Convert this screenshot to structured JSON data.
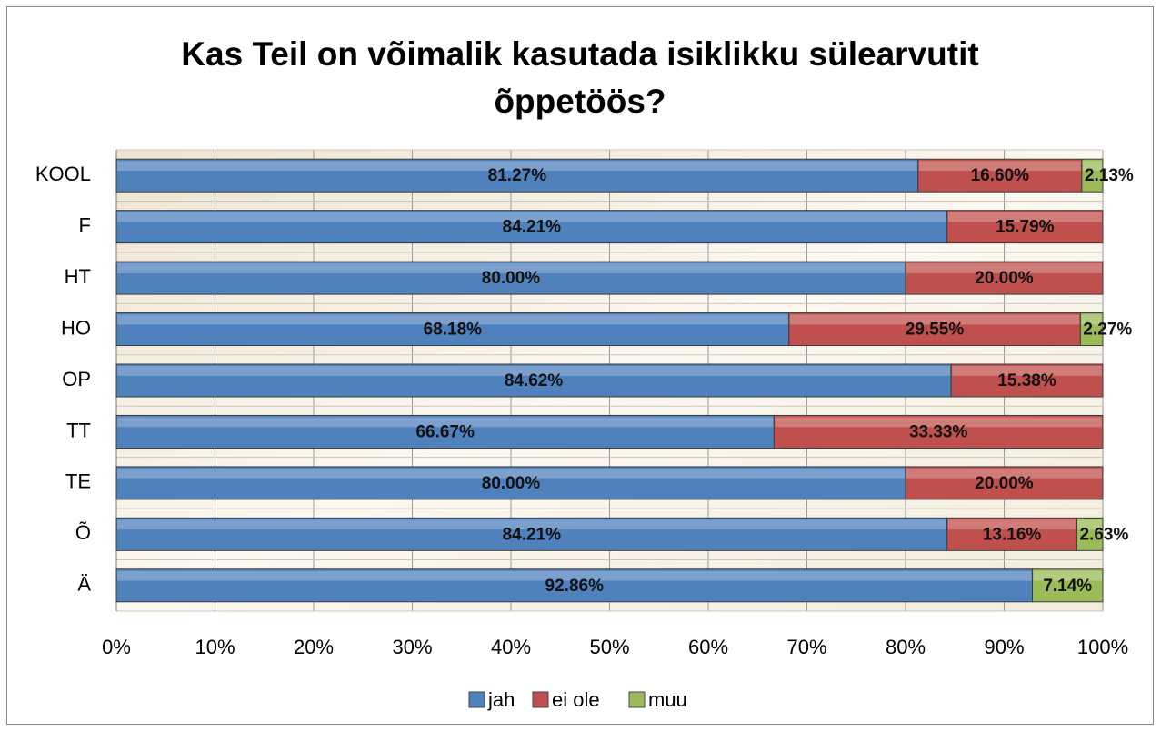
{
  "chart_data": {
    "type": "stacked_barh",
    "title": "Kas Teil on võimalik kasutada isiklikku sülearvutit õppetöös?",
    "categories": [
      "KOOL",
      "F",
      "HT",
      "HO",
      "OP",
      "TT",
      "TE",
      "Õ",
      "Ä"
    ],
    "series": [
      {
        "name": "jah",
        "color": "#4f81bd",
        "values": [
          81.27,
          84.21,
          80.0,
          68.18,
          84.62,
          66.67,
          80.0,
          84.21,
          92.86
        ],
        "value_labels": [
          "81.27%",
          "84.21%",
          "80.00%",
          "68.18%",
          "84.62%",
          "66.67%",
          "80.00%",
          "84.21%",
          "92.86%"
        ]
      },
      {
        "name": "ei ole",
        "color": "#c0504d",
        "values": [
          16.6,
          15.79,
          20.0,
          29.55,
          15.38,
          33.33,
          20.0,
          13.16,
          null
        ],
        "value_labels": [
          "16.60%",
          "15.79%",
          "20.00%",
          "29.55%",
          "15.38%",
          "33.33%",
          "20.00%",
          "13.16%",
          null
        ]
      },
      {
        "name": "muu",
        "color": "#9bbb59",
        "values": [
          2.13,
          null,
          null,
          2.27,
          null,
          null,
          null,
          2.63,
          7.14
        ],
        "value_labels": [
          "2.13%",
          null,
          null,
          "2.27%",
          null,
          null,
          null,
          "2.63%",
          "7.14%"
        ]
      }
    ],
    "xlim": [
      0,
      100
    ],
    "xticks": [
      {
        "value": 0,
        "label": "0%"
      },
      {
        "value": 10,
        "label": "10%"
      },
      {
        "value": 20,
        "label": "20%"
      },
      {
        "value": 30,
        "label": "30%"
      },
      {
        "value": 40,
        "label": "40%"
      },
      {
        "value": 50,
        "label": "50%"
      },
      {
        "value": 60,
        "label": "60%"
      },
      {
        "value": 70,
        "label": "70%"
      },
      {
        "value": 80,
        "label": "80%"
      },
      {
        "value": 90,
        "label": "90%"
      },
      {
        "value": 100,
        "label": "100%"
      }
    ],
    "grid": true,
    "legend": "bottom"
  }
}
